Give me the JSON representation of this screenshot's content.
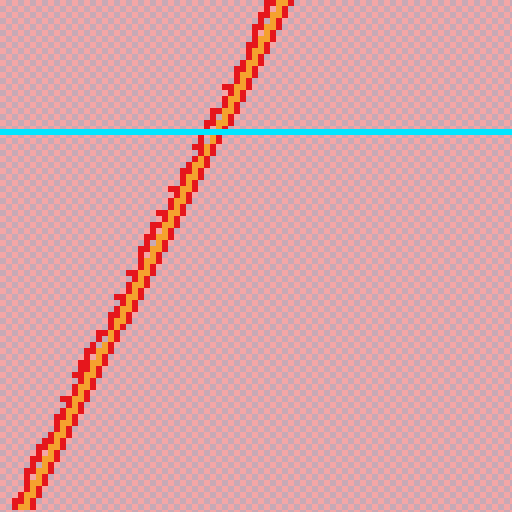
{
  "board": {
    "cell_colors": {
      "light": "#f4a6a6",
      "dark": "#c8a9b5"
    },
    "path_colors": {
      "outer": "#e6161c",
      "inner": "#f5a12e"
    },
    "scanline_color": "#00e5ff"
  }
}
